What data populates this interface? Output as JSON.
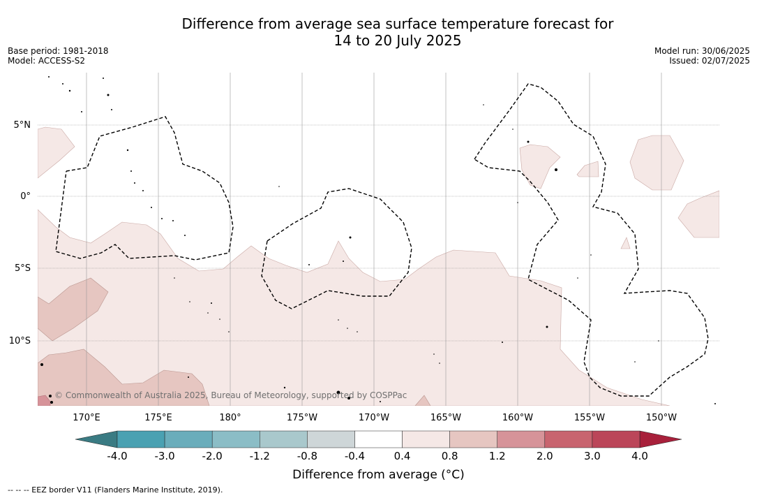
{
  "title_line1": "Difference from average sea surface temperature forecast for",
  "title_line2": "14 to 20 July 2025",
  "base_period": "Base period: 1981-2018",
  "model": "Model: ACCESS-S2",
  "model_run": "Model run: 30/06/2025",
  "issued": "Issued: 02/07/2025",
  "copyright": "© Commonwealth of Australia 2025, Bureau of Meteorology, supported by COSPPac",
  "lon_labels": [
    "170°E",
    "175°E",
    "180°",
    "175°W",
    "170°W",
    "165°W",
    "160°W",
    "155°W",
    "150°W"
  ],
  "lat_labels": [
    "5°N",
    "0°",
    "5°S",
    "10°S"
  ],
  "colorbar": {
    "label": "Difference from average (°C)",
    "ticks": [
      "-4.0",
      "-3.0",
      "-2.0",
      "-1.2",
      "-0.8",
      "-0.4",
      "0.4",
      "0.8",
      "1.2",
      "2.0",
      "3.0",
      "4.0"
    ],
    "under_color": "#3a7b83",
    "over_color": "#a8203b",
    "colors": [
      "#4aa1b2",
      "#6aadbb",
      "#8bbdc6",
      "#a9c8cc",
      "#ced6d8",
      "#ffffff",
      "#f5e8e6",
      "#e6c6c1",
      "#d69399",
      "#c8646f",
      "#bb4659"
    ]
  },
  "footnote": "-- -- -- EEZ border V11 (Flanders Marine Institute, 2019)."
}
